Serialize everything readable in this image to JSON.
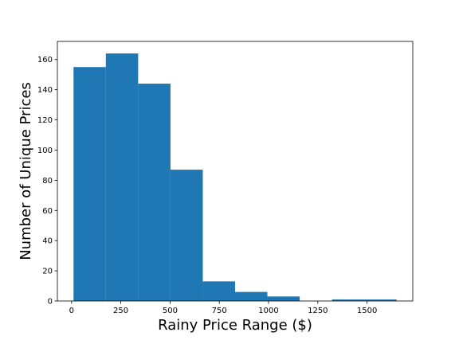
{
  "chart_data": {
    "type": "bar",
    "title": "",
    "xlabel": "Rainy Price Range ($)",
    "ylabel": "Number of Unique Prices",
    "bins": [
      {
        "start": 10,
        "end": 174,
        "count": 155
      },
      {
        "start": 174,
        "end": 338,
        "count": 164
      },
      {
        "start": 338,
        "end": 502,
        "count": 144
      },
      {
        "start": 502,
        "end": 666,
        "count": 87
      },
      {
        "start": 666,
        "end": 830,
        "count": 13
      },
      {
        "start": 830,
        "end": 994,
        "count": 6
      },
      {
        "start": 994,
        "end": 1158,
        "count": 3
      },
      {
        "start": 1158,
        "end": 1322,
        "count": 0
      },
      {
        "start": 1322,
        "end": 1486,
        "count": 1
      },
      {
        "start": 1486,
        "end": 1650,
        "count": 1
      }
    ],
    "xlim": [
      -72,
      1732
    ],
    "ylim": [
      0,
      172
    ],
    "xticks": [
      0,
      250,
      500,
      750,
      1000,
      1250,
      1500
    ],
    "yticks": [
      0,
      20,
      40,
      60,
      80,
      100,
      120,
      140,
      160
    ],
    "grid": false,
    "color": "#1f77b4"
  }
}
